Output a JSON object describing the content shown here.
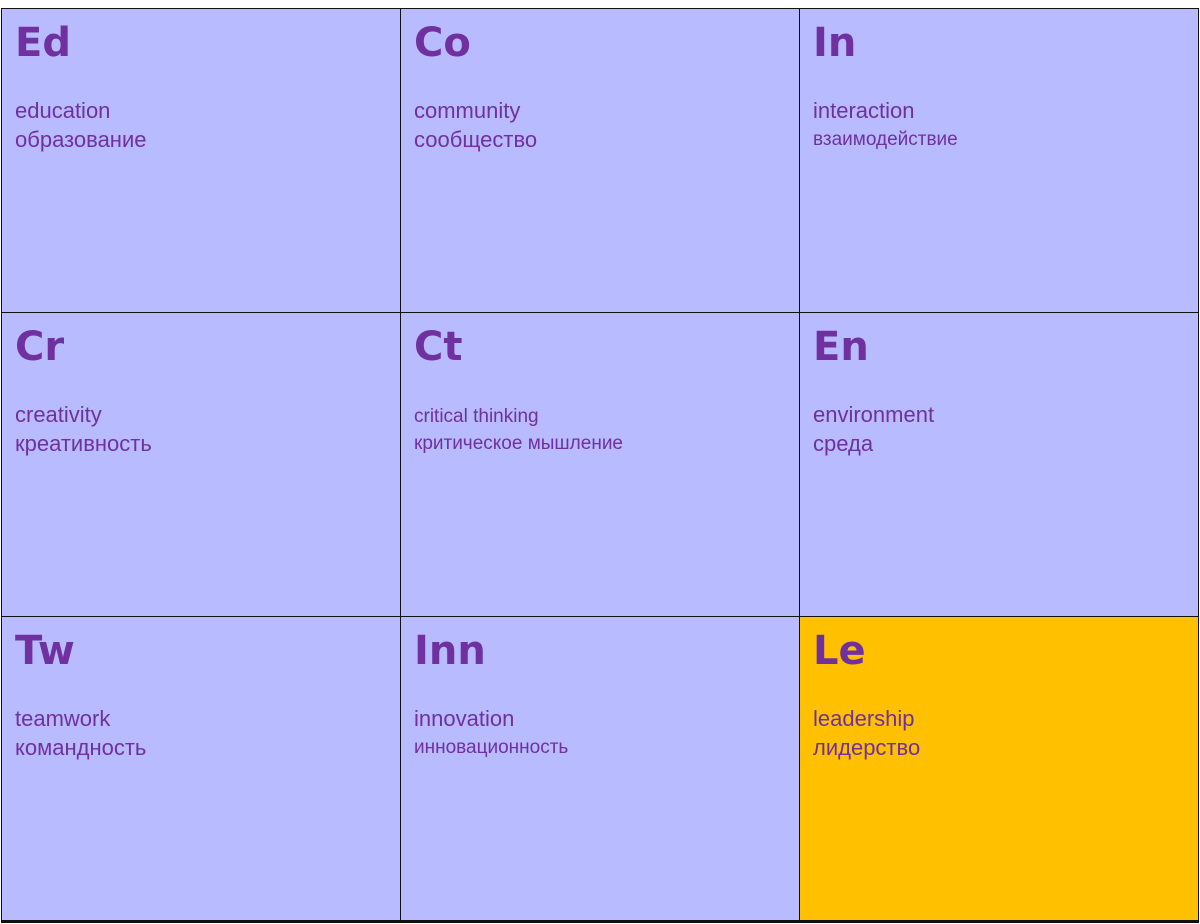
{
  "colors": {
    "cell_background": "#b8bbff",
    "highlight_background": "#ffc000",
    "text": "#7030a0",
    "border": "#111111"
  },
  "cells": [
    {
      "abbr": "Ed",
      "en": "education",
      "ru": "образование"
    },
    {
      "abbr": "Co",
      "en": "community",
      "ru": "сообщество"
    },
    {
      "abbr": "In",
      "en": "interaction",
      "ru": "взаимодействие"
    },
    {
      "abbr": "Cr",
      "en": "creativity",
      "ru": "креативность"
    },
    {
      "abbr": "Ct",
      "en": "critical thinking",
      "ru": "критическое мышление"
    },
    {
      "abbr": "En",
      "en": "environment",
      "ru": "среда"
    },
    {
      "abbr": "Tw",
      "en": "teamwork",
      "ru": "командность"
    },
    {
      "abbr": "Inn",
      "en": "innovation",
      "ru": "инновационность"
    },
    {
      "abbr": "Le",
      "en": "leadership",
      "ru": "лидерство",
      "highlighted": true
    }
  ]
}
